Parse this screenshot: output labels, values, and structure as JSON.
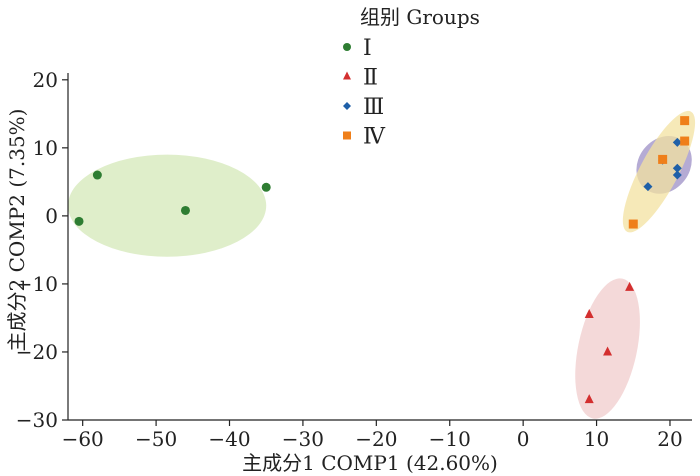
{
  "chart_data": {
    "type": "scatter",
    "title": "",
    "xlabel": "主成分1 COMP1 (42.60%)",
    "ylabel": "主成分2 COMP2 (7.35%)",
    "xlim": [
      -62,
      23
    ],
    "ylim": [
      -30,
      21
    ],
    "xticks": [
      -60,
      -50,
      -40,
      -30,
      -20,
      -10,
      0,
      10,
      20
    ],
    "yticks": [
      -30,
      -20,
      -10,
      0,
      10,
      20
    ],
    "x_tick_labels": [
      "−60",
      "−50",
      "−40",
      "−30",
      "−20",
      "−10",
      "0",
      "10",
      "20"
    ],
    "y_tick_labels": [
      "−30",
      "−20",
      "−10",
      "0",
      "10",
      "20"
    ],
    "grid": false,
    "legend": {
      "title": "组别 Groups",
      "placement": "top-center"
    },
    "series": [
      {
        "name": "Ⅰ",
        "marker": "circle",
        "color": "#2e7d32",
        "ellipse_color": "#d4e8b8",
        "points": [
          [
            -60.5,
            -0.8
          ],
          [
            -58,
            6
          ],
          [
            -46,
            0.8
          ],
          [
            -35,
            4.2
          ]
        ],
        "ellipse": {
          "cx": -48.5,
          "cy": 1.5,
          "rx": 13.5,
          "ry": 7.5,
          "angle": 0
        }
      },
      {
        "name": "Ⅱ",
        "marker": "triangle",
        "color": "#d32f2f",
        "ellipse_color": "#f0cccc",
        "points": [
          [
            9,
            -14.5
          ],
          [
            14.5,
            -10.5
          ],
          [
            11.5,
            -20
          ],
          [
            9,
            -27
          ]
        ],
        "ellipse": {
          "cx": 11.5,
          "cy": -19.5,
          "rx": 4.0,
          "ry": 10.5,
          "angle": 12
        }
      },
      {
        "name": "Ⅲ",
        "marker": "diamond",
        "color": "#1e5fa8",
        "ellipse_color": "#9c8fc6",
        "points": [
          [
            17,
            4.3
          ],
          [
            19,
            8.2
          ],
          [
            21,
            10.8
          ],
          [
            21,
            7
          ],
          [
            21,
            6
          ]
        ],
        "ellipse": {
          "cx": 19.2,
          "cy": 7.5,
          "rx": 3.5,
          "ry": 4.5,
          "angle": 38
        }
      },
      {
        "name": "Ⅳ",
        "marker": "square",
        "color": "#ef7f1a",
        "ellipse_color": "#f3e2a0",
        "points": [
          [
            15,
            -1.2
          ],
          [
            19,
            8.3
          ],
          [
            22,
            14
          ],
          [
            22,
            11
          ]
        ],
        "ellipse": {
          "cx": 18.5,
          "cy": 6.5,
          "rx": 2.6,
          "ry": 10.0,
          "angle": 28
        }
      }
    ]
  }
}
